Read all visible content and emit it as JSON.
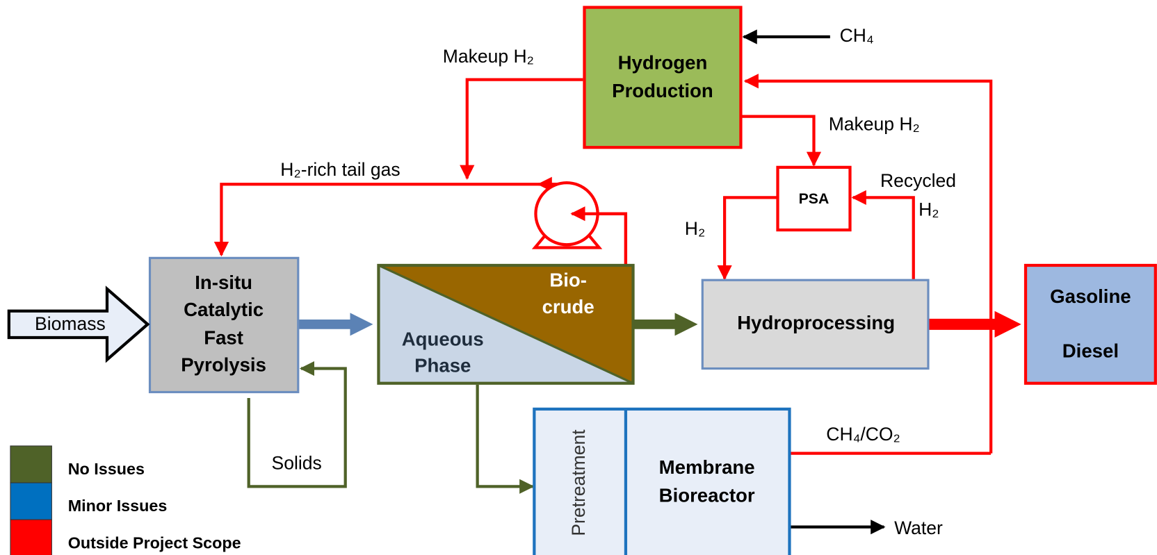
{
  "nodes": [
    {
      "label": [
        "Hydrogen",
        "Production"
      ]
    },
    {
      "label": [
        "PSA"
      ]
    },
    {
      "label": [
        "In-situ",
        "Catalytic",
        "Fast",
        "Pyrolysis"
      ]
    },
    {
      "label": [
        "Bio-",
        "crude"
      ]
    },
    {
      "label": [
        "Aqueous",
        "Phase"
      ]
    },
    {
      "label": [
        "Hydroprocessing"
      ]
    },
    {
      "label": [
        "Gasoline",
        "Diesel"
      ]
    },
    {
      "label": [
        "Pretreatment"
      ]
    },
    {
      "label": [
        "Membrane",
        "Bioreactor"
      ]
    }
  ],
  "streams": [
    {
      "label": [
        "CH₄"
      ]
    },
    {
      "label": [
        "Makeup H₂"
      ]
    },
    {
      "label": [
        "Makeup H₂"
      ]
    },
    {
      "label": [
        "H₂-rich tail gas"
      ]
    },
    {
      "label": [
        "Recycled",
        "H₂"
      ]
    },
    {
      "label": [
        "H₂"
      ]
    },
    {
      "label": [
        "Biomass"
      ]
    },
    {
      "label": [
        "Solids"
      ]
    },
    {
      "label": [
        "CH₄/CO₂"
      ]
    },
    {
      "label": [
        "Water"
      ]
    }
  ],
  "legend": [
    {
      "label": "No Issues",
      "color": "#4f6228"
    },
    {
      "label": "Minor Issues",
      "color": "#0070c0"
    },
    {
      "label": "Outside Project Scope",
      "color": "#ff0000"
    }
  ]
}
